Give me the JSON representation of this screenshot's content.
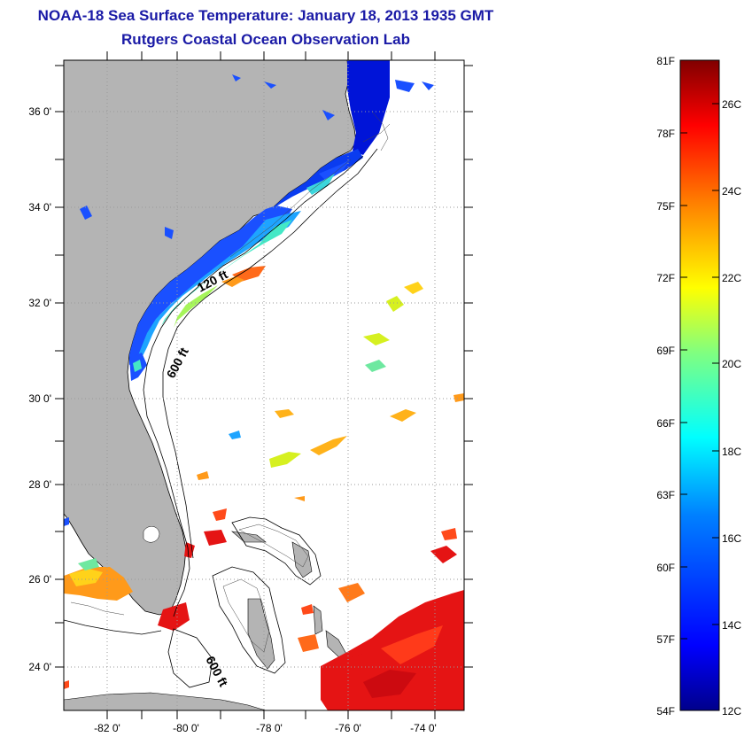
{
  "header": {
    "title": "NOAA-18 Sea Surface Temperature:  January 18, 2013 1935 GMT",
    "subtitle": "Rutgers Coastal Ocean Observation Lab"
  },
  "map": {
    "lat_labels": [
      "36 0'",
      "34 0'",
      "32 0'",
      "30 0'",
      "28 0'",
      "26 0'",
      "24 0'"
    ],
    "lon_labels": [
      "-82 0'",
      "-80 0'",
      "-78 0'",
      "-76 0'",
      "-74 0'"
    ],
    "contour_labels": [
      "120 ft",
      "600 ft",
      "600 ft"
    ],
    "colors": {
      "land": "#b4b4b4",
      "coast_line": "#000000",
      "grid": "#9a9a9a"
    }
  },
  "colorbar": {
    "f_labels": [
      "81F",
      "78F",
      "75F",
      "72F",
      "69F",
      "66F",
      "63F",
      "60F",
      "57F",
      "54F"
    ],
    "c_labels": [
      "26C",
      "24C",
      "22C",
      "20C",
      "18C",
      "16C",
      "14C",
      "12C"
    ],
    "stops": [
      "#00008b",
      "#0000ff",
      "#0080ff",
      "#00ffff",
      "#80ff80",
      "#ffff00",
      "#ff8000",
      "#ff0000",
      "#800000"
    ]
  }
}
